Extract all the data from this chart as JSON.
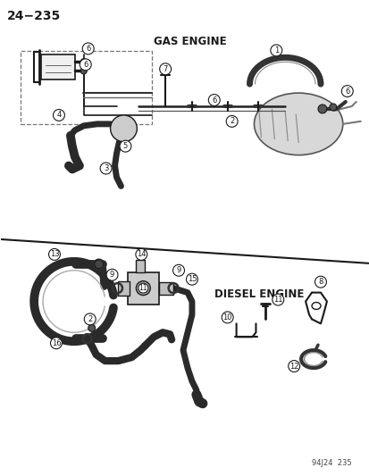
{
  "page_number": "24−235",
  "gas_engine_label": "GAS ENGINE",
  "diesel_engine_label": "DIESEL ENGINE",
  "footer_label": "94J24  235",
  "bg_color": "#ffffff",
  "lc": "#1a1a1a",
  "figsize": [
    4.14,
    5.33
  ],
  "dpi": 100
}
